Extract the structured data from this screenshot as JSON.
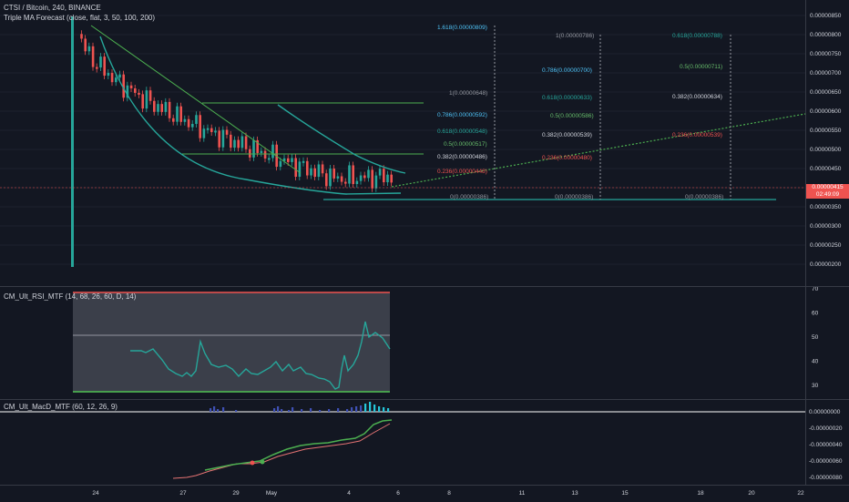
{
  "legends": {
    "main": "CTSI / Bitcoin, 240, BINANCE",
    "indicator": "Triple MA Forecast (close, flat, 3, 50, 100, 200)",
    "rsi": "CM_Ult_RSI_MTF (14, 68, 26, 60, D, 14)",
    "macd": "CM_Ult_MacD_MTF (60, 12, 26, 9)"
  },
  "price_axis": [
    "0.00000850",
    "0.00000800",
    "0.00000750",
    "0.00000700",
    "0.00000650",
    "0.00000600",
    "0.00000550",
    "0.00000500",
    "0.00000450",
    "0.00000400",
    "0.00000350",
    "0.00000300",
    "0.00000250",
    "0.00000200"
  ],
  "last_price": "0.00000415",
  "countdown": "02:49:09",
  "rsi_axis": [
    "70",
    "60",
    "50",
    "40",
    "30"
  ],
  "macd_axis": [
    "0.00000000",
    "-0.00000020",
    "-0.00000040",
    "-0.00000060",
    "-0.00000080"
  ],
  "time_axis": [
    "24",
    "27",
    "29",
    "May",
    "4",
    "6",
    "8",
    "11",
    "13",
    "15",
    "18",
    "20",
    "22"
  ],
  "fib_groups": [
    [
      "1.618(0.00000809)",
      "1(0.00000648)",
      "0.786(0.00000592)",
      "0.618(0.00000548)",
      "0.5(0.00000517)",
      "0.382(0.00000486)",
      "0.236(0.00000448)",
      "0(0.00000386)"
    ],
    [
      "1(0.00000786)",
      "0.786(0.00000700)",
      "0.618(0.00000633)",
      "0.5(0.00000586)",
      "0.382(0.00000539)",
      "0.236(0.00000480)",
      "0(0.00000386)"
    ],
    [
      "0.618(0.00000788)",
      "0.5(0.00000711)",
      "0.382(0.00000634)",
      "0.236(0.00000539)",
      "0(0.00000386)"
    ]
  ],
  "colors": {
    "background": "#131722",
    "bull": "#26a69a",
    "bear": "#ef5350",
    "fib_blue": "#4fc3f7",
    "fib_green": "#66bb6a",
    "fib_red": "#ef5350",
    "fib_gray": "#9598a1",
    "trend": "#4caf50",
    "ma": "#26a69a"
  }
}
